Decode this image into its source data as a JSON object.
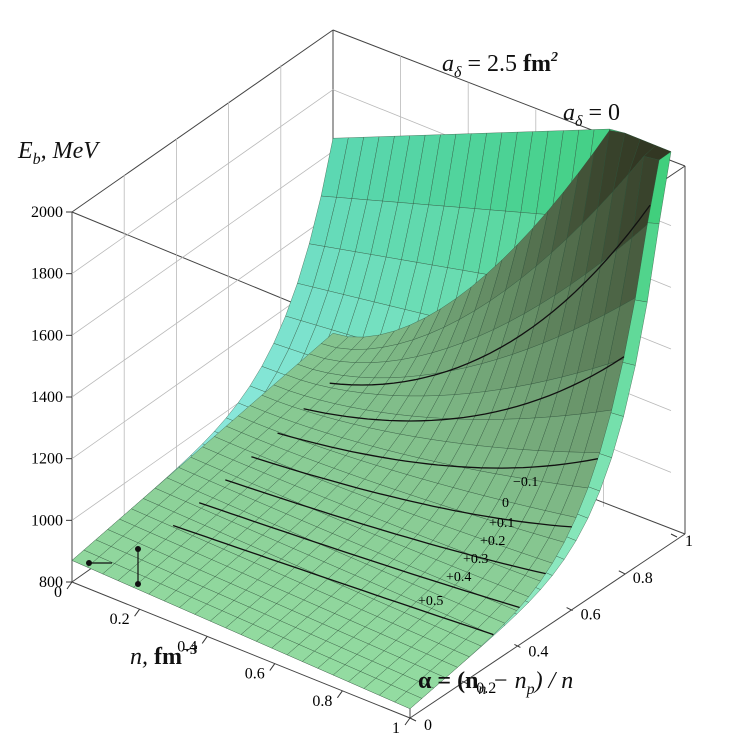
{
  "chart_data": {
    "type": "surface3d",
    "title": "",
    "z_axis": {
      "label": "E",
      "label_sub": "b",
      "label_unit": ",  MeV",
      "ticks": [
        "2000",
        "1800",
        "1600",
        "1400",
        "1200",
        "1000",
        "800"
      ]
    },
    "x_axis": {
      "label": "n,  ",
      "label_unit": "fm",
      "label_exp": "−3",
      "ticks": [
        "0",
        "0.2",
        "0.4",
        "0.6",
        "0.8",
        "1"
      ]
    },
    "y_axis": {
      "label": "α = (n",
      "label_sub1": "n",
      "label_mid": " − n",
      "label_sub2": "p",
      "label_end": ") / n",
      "ticks": [
        "0",
        "0.2",
        "0.4",
        "0.6",
        "0.8",
        "1"
      ]
    },
    "series": [
      {
        "name": "a_δ = 2.5 fm²",
        "label_a": "a",
        "label_sub": "δ",
        "label_rest": " = 2.5 ",
        "label_unit": "fm",
        "label_exp": "2",
        "color": "#3a3a2c"
      },
      {
        "name": "a_δ = 0",
        "label_a": "a",
        "label_sub": "δ",
        "label_rest": " = 0",
        "color": "#5fd58a"
      }
    ],
    "contour_labels": [
      "−0.1",
      "0",
      "+0.1",
      "+0.2",
      "+0.3",
      "+0.4",
      "+0.5"
    ],
    "zlim": [
      800,
      2000
    ],
    "xlim": [
      0,
      1
    ],
    "ylim": [
      0,
      1
    ]
  }
}
